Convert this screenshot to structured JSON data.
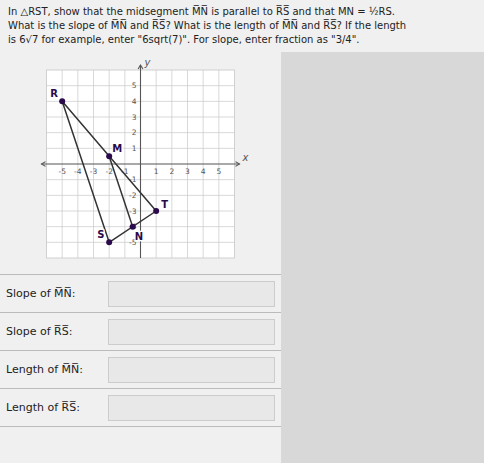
{
  "chart_data": {
    "type": "scatter",
    "title": "In △RST, show that the midsegment M̅N̅ is parallel to R̅S̅ and that MN = ½RS.",
    "subtitle": [
      "What is the slope of M̅N̅ and R̅S̅? What is the length of M̅N̅ and R̅S̅? If the length",
      "is 6√7 for example, enter \"6sqrt(7)\". For slope, enter fraction as \"3/4\"."
    ],
    "x_label": "x",
    "y_label": "y",
    "xlim": [
      -6,
      6
    ],
    "ylim": [
      -6,
      6
    ],
    "xticks": [
      -5,
      -4,
      -3,
      -2,
      -1,
      1,
      2,
      3,
      4,
      5
    ],
    "yticks": [
      -5,
      -4,
      -3,
      -2,
      -1,
      1,
      2,
      3,
      4,
      5
    ],
    "grid": true,
    "series": [
      {
        "type": "line",
        "x": [
          -5,
          -2,
          1,
          -5
        ],
        "values": [
          4,
          -5,
          -3,
          4
        ],
        "color": "#333333"
      },
      {
        "type": "line",
        "x": [
          -2,
          -0.5
        ],
        "values": [
          0.5,
          -4
        ],
        "color": "#333333"
      },
      {
        "type": "scatter",
        "x": [
          -5,
          -2,
          1,
          -2,
          -0.5
        ],
        "values": [
          4,
          -5,
          -3,
          0.5,
          -4
        ],
        "labels": [
          "R",
          "S",
          "T",
          "M",
          "N"
        ],
        "color": "#2a0a4a",
        "marker": "circle"
      }
    ],
    "annotations": [
      "Slope of M̅N̅:",
      "Slope of R̅S̅:",
      "Length of M̅N̅:",
      "Length of R̅S̅:"
    ]
  }
}
